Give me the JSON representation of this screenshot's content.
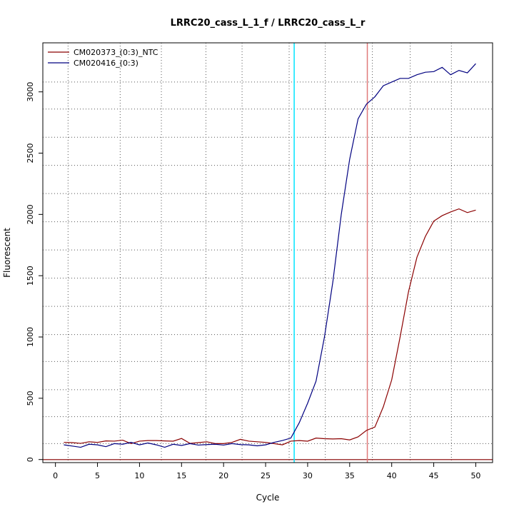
{
  "chart_data": {
    "type": "line",
    "title": "LRRC20_cass_L_1_f / LRRC20_cass_L_r",
    "xlabel": "Cycle",
    "ylabel": "Fluorescent",
    "xlim": [
      -1.5,
      52
    ],
    "ylim": [
      -25,
      3400
    ],
    "x_ticks": [
      0,
      5,
      10,
      15,
      20,
      25,
      30,
      35,
      40,
      45,
      50
    ],
    "y_ticks": [
      0,
      500,
      1000,
      1500,
      2000,
      2500,
      3000
    ],
    "grid": {
      "vertical_dotted_at": [
        1.5,
        7.7,
        12.6,
        17.9,
        22.2,
        27.8,
        32.1,
        37.7,
        42.2,
        47.1
      ],
      "horizontal_dotted_at": [
        130,
        350,
        570,
        800,
        1020,
        1250,
        1480,
        1710,
        1940,
        2170,
        2400,
        2630,
        2860,
        3080
      ]
    },
    "legend_position": "top-left",
    "vlines": [
      {
        "x": 28.4,
        "color": "#00e5ff"
      },
      {
        "x": 37.1,
        "color": "#e07a7a"
      }
    ],
    "hlines": [
      {
        "y": 0,
        "color": "#a33a3a"
      }
    ],
    "x": [
      1,
      2,
      3,
      4,
      5,
      6,
      7,
      8,
      9,
      10,
      11,
      12,
      13,
      14,
      15,
      16,
      17,
      18,
      19,
      20,
      21,
      22,
      23,
      24,
      25,
      26,
      27,
      28,
      29,
      30,
      31,
      32,
      33,
      34,
      35,
      36,
      37,
      38,
      39,
      40,
      41,
      42,
      43,
      44,
      45,
      46,
      47,
      48,
      49,
      50
    ],
    "series": [
      {
        "name": "CM020373_(0:3)_NTC",
        "color": "#8b0000",
        "values": [
          140,
          138,
          132,
          145,
          140,
          152,
          150,
          158,
          130,
          150,
          155,
          155,
          152,
          150,
          172,
          132,
          138,
          145,
          130,
          130,
          140,
          165,
          150,
          145,
          140,
          130,
          120,
          150,
          155,
          150,
          175,
          170,
          168,
          170,
          160,
          185,
          238,
          265,
          430,
          650,
          1000,
          1370,
          1650,
          1820,
          1945,
          1990,
          2020,
          2045,
          2015,
          2035
        ]
      },
      {
        "name": "CM020416_(0:3)",
        "color": "#000080",
        "values": [
          120,
          110,
          100,
          125,
          120,
          105,
          130,
          125,
          140,
          120,
          135,
          120,
          100,
          125,
          115,
          130,
          118,
          122,
          125,
          118,
          130,
          122,
          120,
          112,
          120,
          140,
          155,
          175,
          300,
          460,
          640,
          1000,
          1450,
          2000,
          2450,
          2780,
          2900,
          2960,
          3050,
          3080,
          3110,
          3110,
          3140,
          3160,
          3165,
          3200,
          3140,
          3175,
          3155,
          3230
        ]
      }
    ]
  }
}
